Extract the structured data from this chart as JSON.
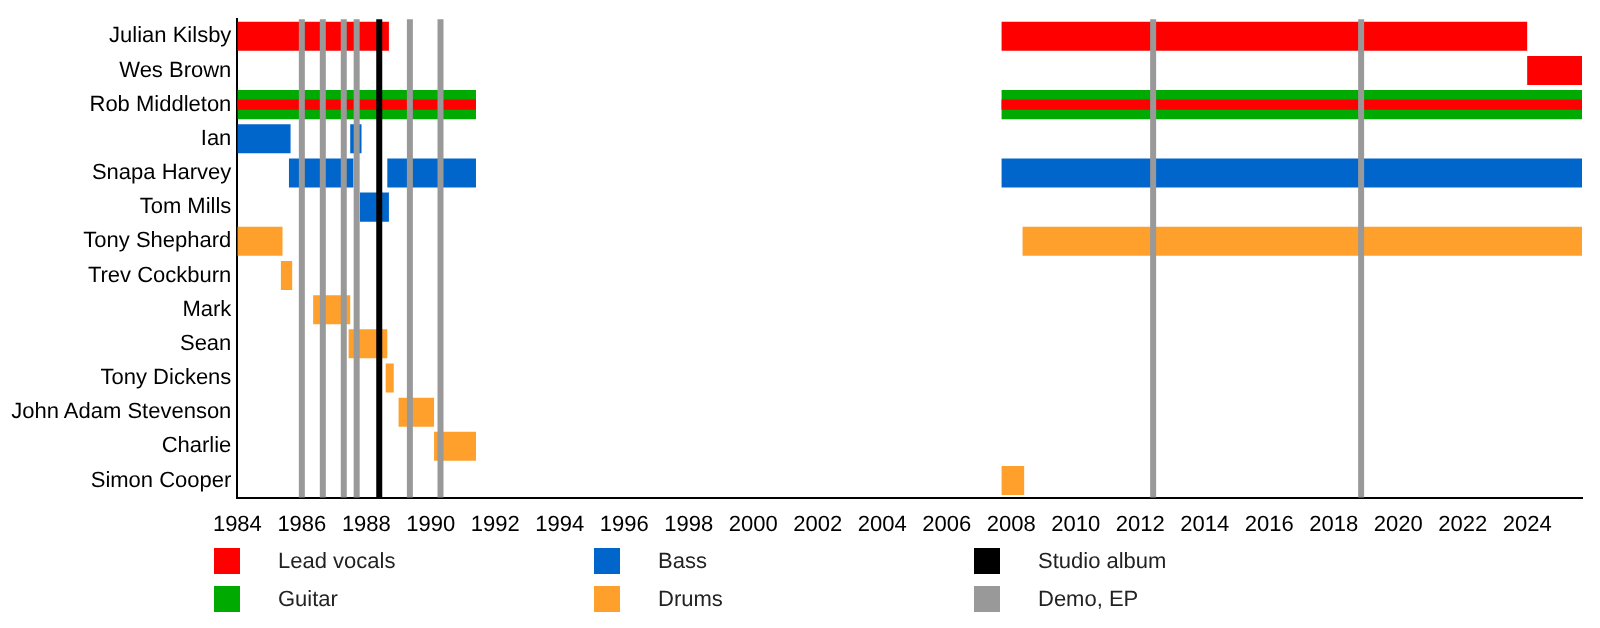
{
  "chart_data": {
    "type": "bar",
    "orientation": "horizontal",
    "grid": false,
    "legend": "bottom",
    "categories": [
      "Julian Kilsby",
      "Wes Brown",
      "Rob Middleton",
      "Ian",
      "Snapa Harvey",
      "Tom Mills",
      "Tony Shephard",
      "Trev Cockburn",
      "Mark",
      "Sean",
      "Tony Dickens",
      "John Adam Stevenson",
      "Charlie",
      "Simon Cooper"
    ],
    "xlim": [
      1984,
      2025.7
    ],
    "xticks": [
      1984,
      1986,
      1988,
      1990,
      1992,
      1994,
      1996,
      1998,
      2000,
      2002,
      2004,
      2006,
      2008,
      2010,
      2012,
      2014,
      2016,
      2018,
      2020,
      2022,
      2024
    ],
    "series": [
      {
        "name": "Lead vocals",
        "color": "#ff0000",
        "base": [
          1984,
          2024,
          null,
          null,
          null,
          null,
          null,
          null,
          null,
          null,
          null,
          null,
          null,
          null
        ],
        "values": [
          4.7,
          1.7,
          null,
          null,
          null,
          null,
          null,
          null,
          null,
          null,
          null,
          null,
          null,
          null
        ]
      },
      {
        "color": "#ff0000",
        "base": [
          2007.7,
          null,
          null,
          null,
          null,
          null,
          null,
          null,
          null,
          null,
          null,
          null,
          null,
          null
        ],
        "values": [
          16.3,
          null,
          null,
          null,
          null,
          null,
          null,
          null,
          null,
          null,
          null,
          null,
          null,
          null
        ]
      },
      {
        "name": "Guitar",
        "color": "#00aa00",
        "base": [
          null,
          null,
          1984,
          null,
          null,
          null,
          null,
          null,
          null,
          null,
          null,
          null,
          null,
          null
        ],
        "values": [
          null,
          null,
          7.4,
          null,
          null,
          null,
          null,
          null,
          null,
          null,
          null,
          null,
          null,
          null
        ]
      },
      {
        "color": "#00aa00",
        "base": [
          null,
          null,
          2007.7,
          null,
          null,
          null,
          null,
          null,
          null,
          null,
          null,
          null,
          null,
          null
        ],
        "values": [
          null,
          null,
          18,
          null,
          null,
          null,
          null,
          null,
          null,
          null,
          null,
          null,
          null,
          null
        ]
      },
      {
        "color": "#ff0000",
        "base": [
          null,
          null,
          1984,
          null,
          null,
          null,
          null,
          null,
          null,
          null,
          null,
          null,
          null,
          null
        ],
        "values": [
          null,
          null,
          7.4,
          null,
          null,
          null,
          null,
          null,
          null,
          null,
          null,
          null,
          null,
          null
        ]
      },
      {
        "color": "#ff0000",
        "base": [
          null,
          null,
          2007.7,
          null,
          null,
          null,
          null,
          null,
          null,
          null,
          null,
          null,
          null,
          null
        ],
        "values": [
          null,
          null,
          18,
          null,
          null,
          null,
          null,
          null,
          null,
          null,
          null,
          null,
          null,
          null
        ]
      },
      {
        "name": "Bass",
        "color": "#0066cc",
        "base": [
          null,
          null,
          null,
          1984,
          1985.6,
          1987.8,
          null,
          null,
          null,
          null,
          null,
          null,
          null,
          null
        ],
        "values": [
          null,
          null,
          null,
          1.65,
          2,
          0.9,
          null,
          null,
          null,
          null,
          null,
          null,
          null,
          null
        ]
      },
      {
        "color": "#0066cc",
        "base": [
          null,
          null,
          null,
          1987.5,
          1988.65,
          null,
          null,
          null,
          null,
          null,
          null,
          null,
          null,
          null
        ],
        "values": [
          null,
          null,
          null,
          0.35,
          2.75,
          null,
          null,
          null,
          null,
          null,
          null,
          null,
          null,
          null
        ]
      },
      {
        "color": "#0066cc",
        "base": [
          null,
          null,
          null,
          null,
          2007.7,
          null,
          null,
          null,
          null,
          null,
          null,
          null,
          null,
          null
        ],
        "values": [
          null,
          null,
          null,
          null,
          18,
          null,
          null,
          null,
          null,
          null,
          null,
          null,
          null,
          null
        ]
      },
      {
        "name": "Drums",
        "color": "#ffa02c",
        "base": [
          null,
          null,
          null,
          null,
          null,
          null,
          1984,
          1985.35,
          1986.35,
          1987.45,
          1988.6,
          1989,
          1990.1,
          2007.7
        ],
        "values": [
          null,
          null,
          null,
          null,
          null,
          null,
          1.4,
          0.35,
          1.15,
          1.2,
          0.25,
          1.1,
          1.3,
          0.7
        ]
      },
      {
        "color": "#ffa02c",
        "base": [
          null,
          null,
          null,
          null,
          null,
          null,
          2008.35,
          null,
          null,
          null,
          null,
          null,
          null,
          null
        ],
        "values": [
          null,
          null,
          null,
          null,
          null,
          null,
          17.35,
          null,
          null,
          null,
          null,
          null,
          null,
          null
        ]
      }
    ],
    "ref_lines": [
      {
        "axis": "x",
        "value": 1988.4,
        "label": "Studio album",
        "color": "#000000"
      },
      {
        "axis": "x",
        "value": 1986,
        "label": "Demo, EP",
        "color": "#999999"
      },
      {
        "axis": "x",
        "value": 1986.65,
        "color": "#999999"
      },
      {
        "axis": "x",
        "value": 1987.3,
        "color": "#999999"
      },
      {
        "axis": "x",
        "value": 1987.7,
        "color": "#999999"
      },
      {
        "axis": "x",
        "value": 1989.35,
        "color": "#999999"
      },
      {
        "axis": "x",
        "value": 1990.3,
        "color": "#999999"
      },
      {
        "axis": "x",
        "value": 2012.4,
        "color": "#999999"
      },
      {
        "axis": "x",
        "value": 2018.85,
        "color": "#999999"
      }
    ]
  }
}
